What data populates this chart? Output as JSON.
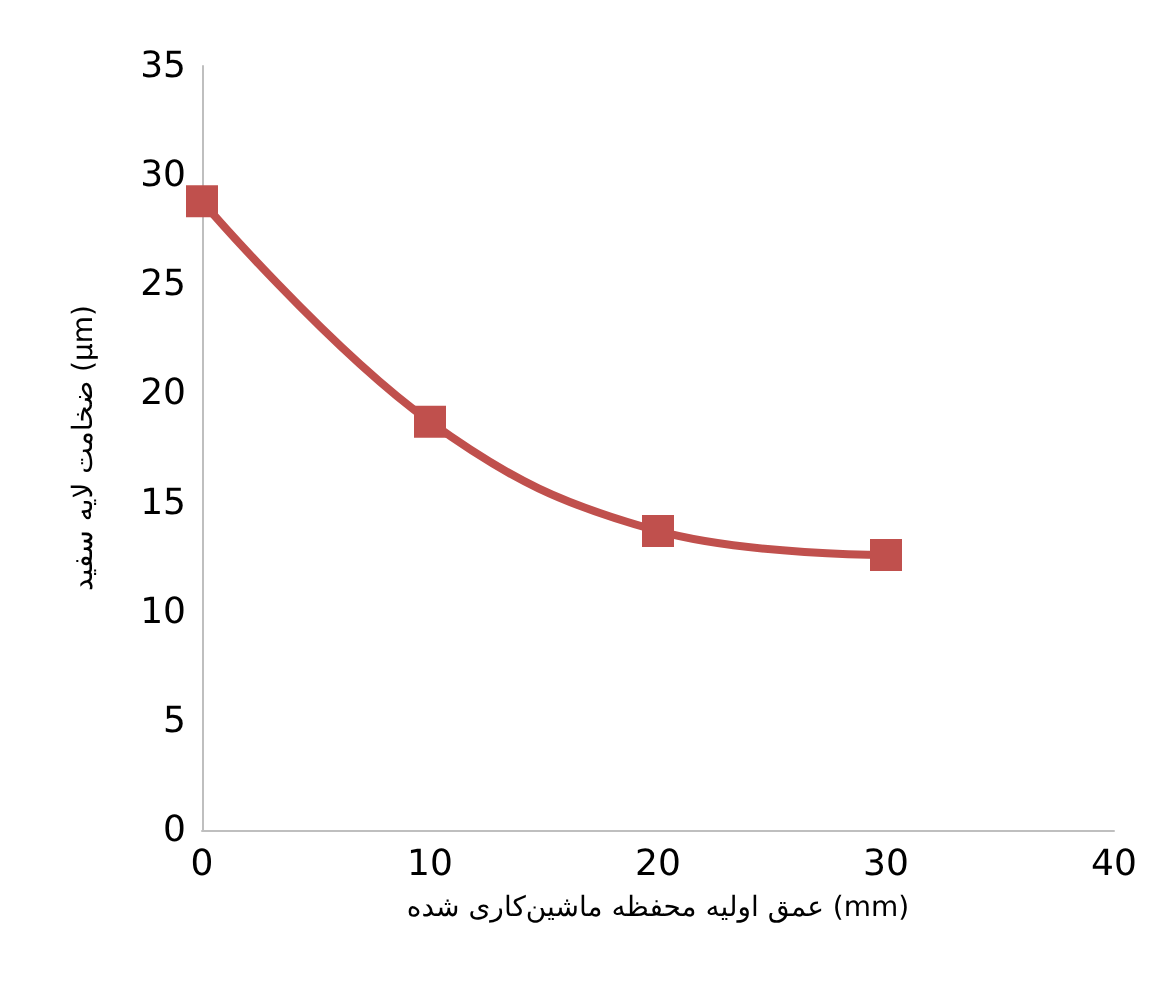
{
  "chart_data": {
    "type": "line",
    "xlabel": "عمق اولیه محفظه ماشین‌کاری شده (mm)",
    "ylabel": "ضخامت لایه سفید (μm)",
    "x": [
      0,
      10,
      20,
      30
    ],
    "series": [
      {
        "color": "#c0504d",
        "values": [
          28.8,
          18.7,
          13.7,
          12.6
        ]
      }
    ],
    "xlim": [
      0,
      40
    ],
    "xticks": [
      0,
      10,
      20,
      30,
      40
    ],
    "ylim": [
      0,
      35
    ],
    "yticks": [
      0,
      5,
      10,
      15,
      20,
      25,
      30,
      35
    ],
    "grid": false,
    "marker": "square",
    "line_style": "solid"
  }
}
